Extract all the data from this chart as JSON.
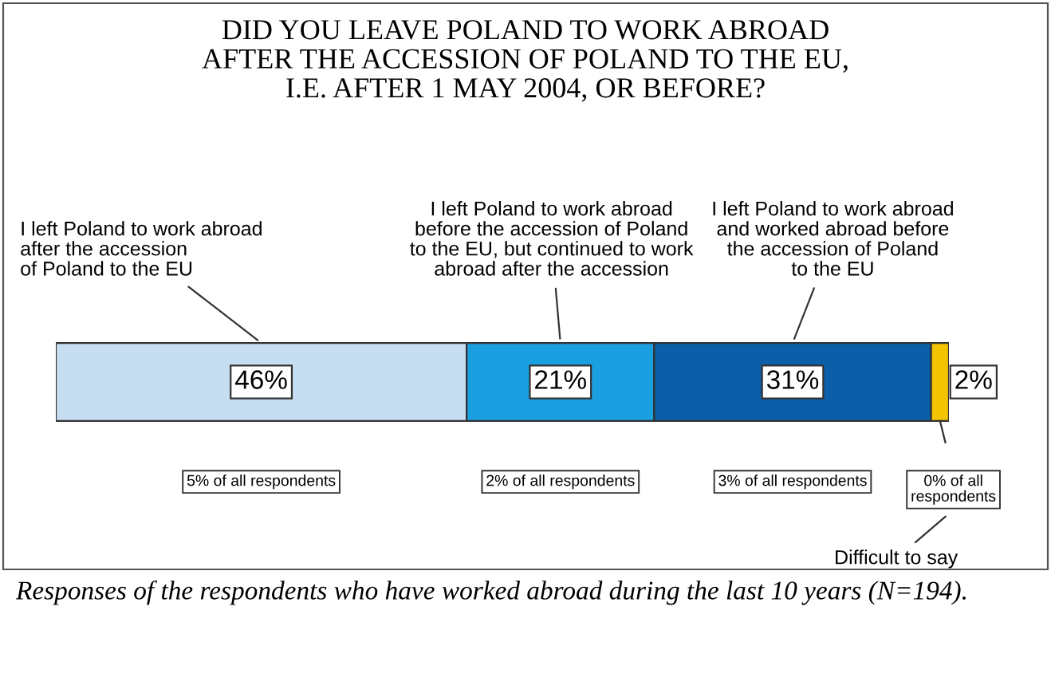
{
  "chart_data": {
    "type": "bar",
    "orientation": "horizontal",
    "stacked": true,
    "title": "DID YOU LEAVE POLAND TO WORK ABROAD\nAFTER THE ACCESSION OF POLAND TO THE EU,\nI.E. AFTER 1 MAY 2004, OR BEFORE?",
    "categories": [
      null
    ],
    "xlim": [
      0,
      100
    ],
    "tick_labels": false,
    "series": [
      {
        "name": "I left Poland to work abroad\nafter the accession\nof Poland to the EU",
        "color": "#c6ddf2",
        "values": [
          46
        ],
        "value_labels": [
          "46%"
        ]
      },
      {
        "name": "I left Poland to work abroad\nbefore the accession of Poland\nto the EU, but continued to work\nabroad after the accession",
        "color": "#1a9fe0",
        "values": [
          21
        ],
        "value_labels": [
          "21%"
        ]
      },
      {
        "name": "I left Poland to work abroad\nand worked abroad before\nthe accession of Poland\nto the EU",
        "color": "#0b5fa8",
        "values": [
          31
        ],
        "value_labels": [
          "31%"
        ]
      },
      {
        "name": "Difficult to say",
        "color": "#f5c400",
        "values": [
          2
        ],
        "value_labels": [
          "2%"
        ]
      }
    ],
    "annotations": [
      "5% of all respondents",
      "2% of all respondents",
      "3% of all respondents",
      "0% of all\nrespondents",
      "Responses of the respondents who have worked abroad during the last 10 years (N=194)."
    ]
  }
}
